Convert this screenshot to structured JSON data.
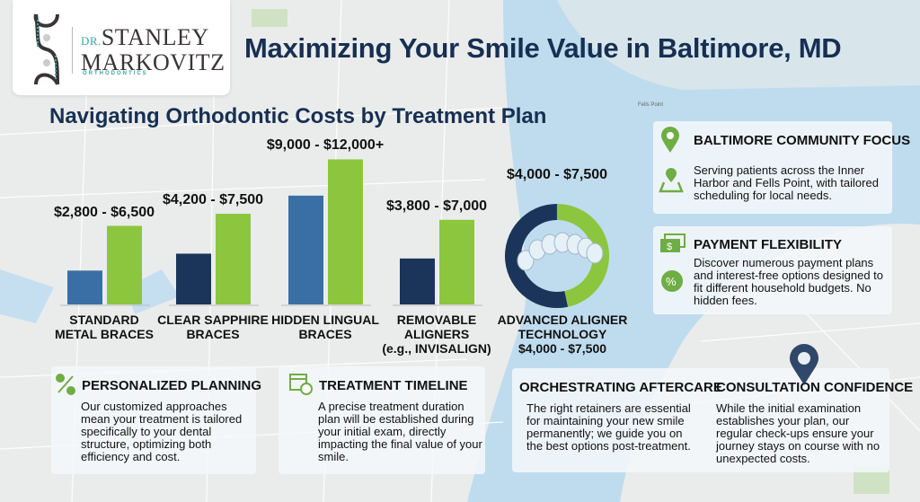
{
  "logo": {
    "dr": "DR.",
    "line1": "STANLEY",
    "line2": "MARKOVITZ",
    "sub": "ORTHODONTICS"
  },
  "title": "Maximizing Your Smile Value in Baltimore, MD",
  "subtitle": "Navigating Orthodontic Costs by Treatment Plan",
  "map_label": "Fells Point",
  "colors": {
    "navy": "#172f52",
    "blue": "#3a6fa5",
    "dark_navy": "#1b355a",
    "green": "#8cc63f",
    "icon_green": "#6fad45"
  },
  "chart_data": {
    "type": "bar",
    "categories": [
      "STANDARD METAL BRACES",
      "CLEAR SAPPHIRE BRACES",
      "HIDDEN LINGUAL BRACES",
      "REMOVABLE ALIGNERS (e.g., INVISALIGN)"
    ],
    "category_lines": [
      [
        "STANDARD",
        "METAL BRACES"
      ],
      [
        "CLEAR SAPPHIRE",
        "BRACES"
      ],
      [
        "HIDDEN LINGUAL",
        "BRACES"
      ],
      [
        "REMOVABLE",
        "ALIGNERS",
        "(e.g., INVISALIGN)"
      ]
    ],
    "price_labels": [
      "$2,800 - $6,500",
      "$4,200 - $7,500",
      "$9,000 - $12,000+",
      "$3,800 - $7,000"
    ],
    "series": [
      {
        "values": [
          2800,
          4200,
          9000,
          3800
        ]
      },
      {
        "values": [
          6500,
          7500,
          12000,
          7000
        ]
      }
    ],
    "ylim": [
      0,
      13000
    ],
    "grid": false,
    "donut": {
      "type": "pie",
      "label_top": "$4,000 - $7,500",
      "lines": [
        "ADVANCED ALIGNER",
        "TECHNOLOGY",
        "$4,000 - $7,500"
      ],
      "values": [
        4000,
        7500
      ]
    }
  },
  "side_cards": [
    {
      "title": "BALTIMORE COMMUNITY FOCUS",
      "text": "Serving patients across the Inner Harbor and Fells Point, with tailored scheduling for local needs.",
      "icons": [
        "map-pin-icon",
        "map-location-icon"
      ]
    },
    {
      "title": "PAYMENT FLEXIBILITY",
      "text": "Discover numerous payment plans and interest-free options designed to fit different household budgets. No hidden fees.",
      "icons": [
        "dollar-bills-icon",
        "percent-badge-icon"
      ]
    }
  ],
  "bottom_cards": [
    {
      "title": "PERSONALIZED PLANNING",
      "text": "Our customized approaches mean your treatment is tailored specifically to your dental structure, optimizing both efficiency and cost."
    },
    {
      "title": "TREATMENT TIMELINE",
      "text": "A precise treatment duration plan will be established during your initial exam, directly impacting the final value of your smile."
    },
    {
      "title": "ORCHESTRATING AFTERCARE",
      "text": "The right retainers are essential for maintaining your new smile permanently; we guide you on the best options post-treatment."
    },
    {
      "title": "CONSULTATION CONFIDENCE",
      "text": "While the initial examination establishes your plan, our regular check-ups ensure your journey stays on course with no unexpected costs."
    }
  ]
}
